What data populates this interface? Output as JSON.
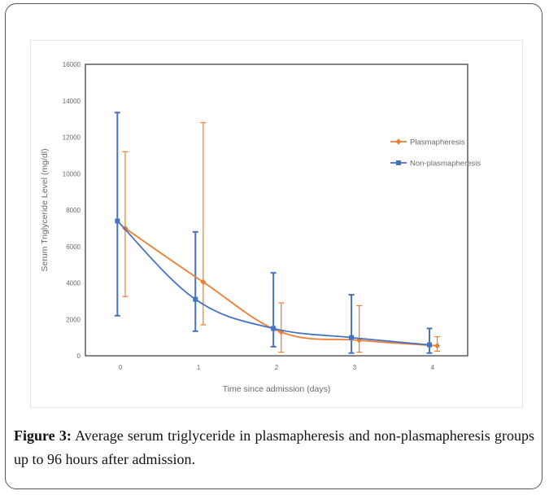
{
  "figure": {
    "label": "Figure 3:",
    "caption": "Average serum triglyceride in plasmapheresis and non-plasmapheresis groups up to 96 hours after admission."
  },
  "chart_data": {
    "type": "line",
    "xlabel": "Time since admission (days)",
    "ylabel": "Serum Triglyceride Level (mg/dl)",
    "x": [
      0,
      1,
      2,
      3,
      4
    ],
    "xlim": [
      -0.45,
      4.45
    ],
    "ylim": [
      0,
      16000
    ],
    "y_ticks": [
      0,
      2000,
      4000,
      6000,
      8000,
      10000,
      12000,
      14000,
      16000
    ],
    "x_ticks": [
      0,
      1,
      2,
      3,
      4
    ],
    "legend_position": "right",
    "grid": false,
    "series": [
      {
        "name": "Plasmapheresis",
        "color": "#ed7d31",
        "marker": "diamond",
        "x": [
          0.06,
          1.06,
          2.06,
          3.06,
          4.06
        ],
        "values": [
          7000,
          4050,
          1300,
          850,
          550
        ],
        "err_low": [
          3250,
          1700,
          200,
          200,
          250
        ],
        "err_high": [
          11200,
          12800,
          2900,
          2750,
          1050
        ]
      },
      {
        "name": "Non-plasmapheresis",
        "color": "#4472c4",
        "marker": "square",
        "x": [
          -0.04,
          0.96,
          1.96,
          2.96,
          3.96
        ],
        "values": [
          7400,
          3100,
          1500,
          1000,
          600
        ],
        "err_low": [
          2200,
          1350,
          500,
          150,
          150
        ],
        "err_high": [
          13350,
          6800,
          4550,
          3350,
          1500
        ]
      }
    ]
  }
}
